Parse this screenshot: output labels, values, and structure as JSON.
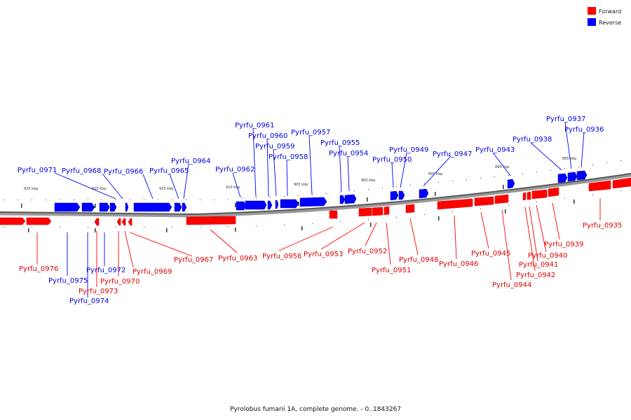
{
  "legend": {
    "forward_label": "Forward",
    "reverse_label": "Reverse",
    "forward_color": "#ff0000",
    "reverse_color": "#0000ff"
  },
  "caption": "Pyrolobus fumarii 1A, complete genome. - 0..1843267",
  "scale_labels": [
    "925 kbp",
    "920 kbp",
    "915 kbp",
    "910 kbp",
    "905 kbp",
    "900 kbp",
    "895 kbp",
    "890 kbp",
    "885 kbp"
  ],
  "genes": [
    {
      "id": "Pyrfu_0976",
      "strand": "forward"
    },
    {
      "id": "Pyrfu_0975",
      "strand": "reverse"
    },
    {
      "id": "Pyrfu_0974",
      "strand": "reverse"
    },
    {
      "id": "Pyrfu_0973",
      "strand": "forward"
    },
    {
      "id": "Pyrfu_0972",
      "strand": "reverse"
    },
    {
      "id": "Pyrfu_0971",
      "strand": "reverse"
    },
    {
      "id": "Pyrfu_0970",
      "strand": "forward"
    },
    {
      "id": "Pyrfu_0969",
      "strand": "forward"
    },
    {
      "id": "Pyrfu_0968",
      "strand": "reverse"
    },
    {
      "id": "Pyrfu_0967",
      "strand": "forward"
    },
    {
      "id": "Pyrfu_0966",
      "strand": "reverse"
    },
    {
      "id": "Pyrfu_0965",
      "strand": "reverse"
    },
    {
      "id": "Pyrfu_0964",
      "strand": "reverse"
    },
    {
      "id": "Pyrfu_0963",
      "strand": "forward"
    },
    {
      "id": "Pyrfu_0962",
      "strand": "reverse"
    },
    {
      "id": "Pyrfu_0961",
      "strand": "reverse"
    },
    {
      "id": "Pyrfu_0960",
      "strand": "reverse"
    },
    {
      "id": "Pyrfu_0959",
      "strand": "reverse"
    },
    {
      "id": "Pyrfu_0958",
      "strand": "reverse"
    },
    {
      "id": "Pyrfu_0957",
      "strand": "reverse"
    },
    {
      "id": "Pyrfu_0956",
      "strand": "forward"
    },
    {
      "id": "Pyrfu_0955",
      "strand": "reverse"
    },
    {
      "id": "Pyrfu_0954",
      "strand": "reverse"
    },
    {
      "id": "Pyrfu_0953",
      "strand": "forward"
    },
    {
      "id": "Pyrfu_0952",
      "strand": "forward"
    },
    {
      "id": "Pyrfu_0951",
      "strand": "forward"
    },
    {
      "id": "Pyrfu_0950",
      "strand": "reverse"
    },
    {
      "id": "Pyrfu_0949",
      "strand": "reverse"
    },
    {
      "id": "Pyrfu_0948",
      "strand": "forward"
    },
    {
      "id": "Pyrfu_0947",
      "strand": "reverse"
    },
    {
      "id": "Pyrfu_0946",
      "strand": "forward"
    },
    {
      "id": "Pyrfu_0945",
      "strand": "forward"
    },
    {
      "id": "Pyrfu_0944",
      "strand": "forward"
    },
    {
      "id": "Pyrfu_0943",
      "strand": "reverse"
    },
    {
      "id": "Pyrfu_0942",
      "strand": "forward"
    },
    {
      "id": "Pyrfu_0941",
      "strand": "forward"
    },
    {
      "id": "Pyrfu_0940",
      "strand": "forward"
    },
    {
      "id": "Pyrfu_0939",
      "strand": "forward"
    },
    {
      "id": "Pyrfu_0938",
      "strand": "reverse"
    },
    {
      "id": "Pyrfu_0937",
      "strand": "reverse"
    },
    {
      "id": "Pyrfu_0936",
      "strand": "reverse"
    },
    {
      "id": "Pyrfu_0935",
      "strand": "forward"
    }
  ]
}
